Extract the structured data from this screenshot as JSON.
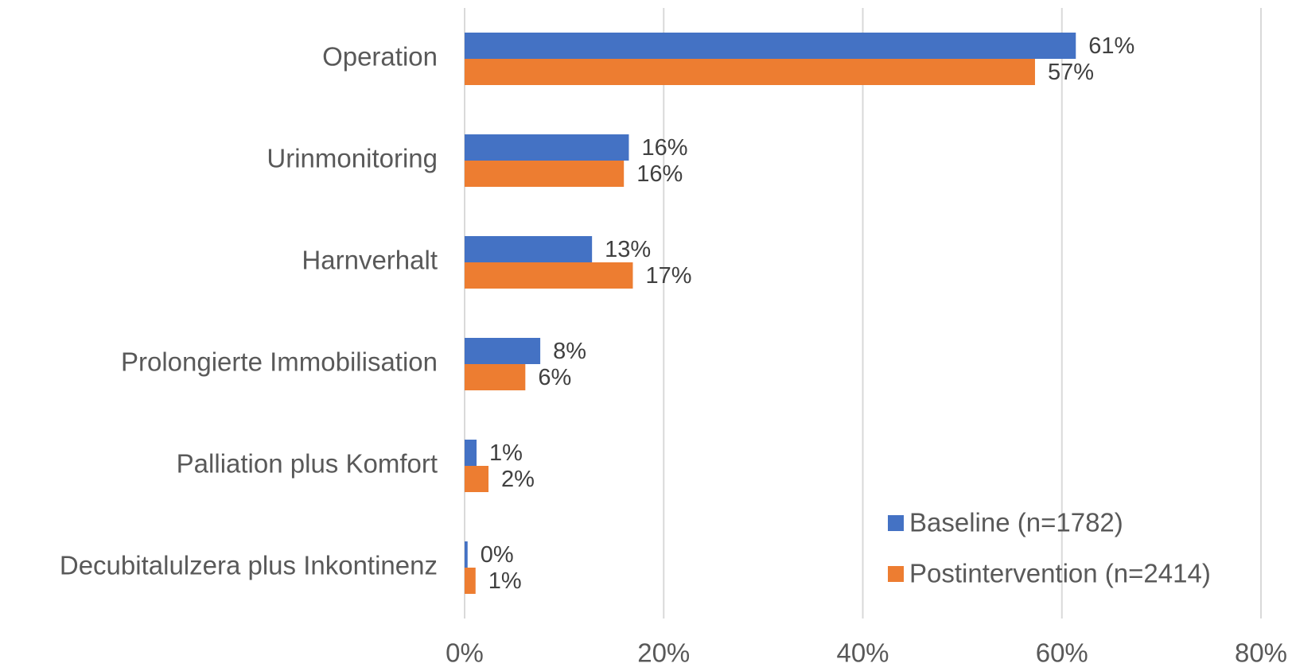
{
  "chart_data": {
    "type": "bar",
    "orientation": "horizontal",
    "categories": [
      "Operation",
      "Urinmonitoring",
      "Harnverhalt",
      "Prolongierte Immobilisation",
      "Palliation plus Komfort",
      "Decubitalulzera plus Inkontinenz"
    ],
    "series": [
      {
        "name": "Baseline (n=1782)",
        "color": "#4472c4",
        "values": [
          61.4,
          16.5,
          12.8,
          7.6,
          1.2,
          0.3
        ],
        "value_labels": [
          "61%",
          "16%",
          "13%",
          "8%",
          "1%",
          "0%"
        ]
      },
      {
        "name": "Postintervention (n=2414)",
        "color": "#ed7d31",
        "values": [
          57.3,
          16.0,
          16.9,
          6.1,
          2.4,
          1.1
        ],
        "value_labels": [
          "57%",
          "16%",
          "17%",
          "6%",
          "2%",
          "1%"
        ]
      }
    ],
    "xlim": [
      0,
      80
    ],
    "xticks": [
      {
        "value": 0,
        "label": "0%"
      },
      {
        "value": 20,
        "label": "20%"
      },
      {
        "value": 40,
        "label": "40%"
      },
      {
        "value": 60,
        "label": "60%"
      },
      {
        "value": 80,
        "label": "80%"
      }
    ],
    "grid": true,
    "legend": "lower right"
  }
}
